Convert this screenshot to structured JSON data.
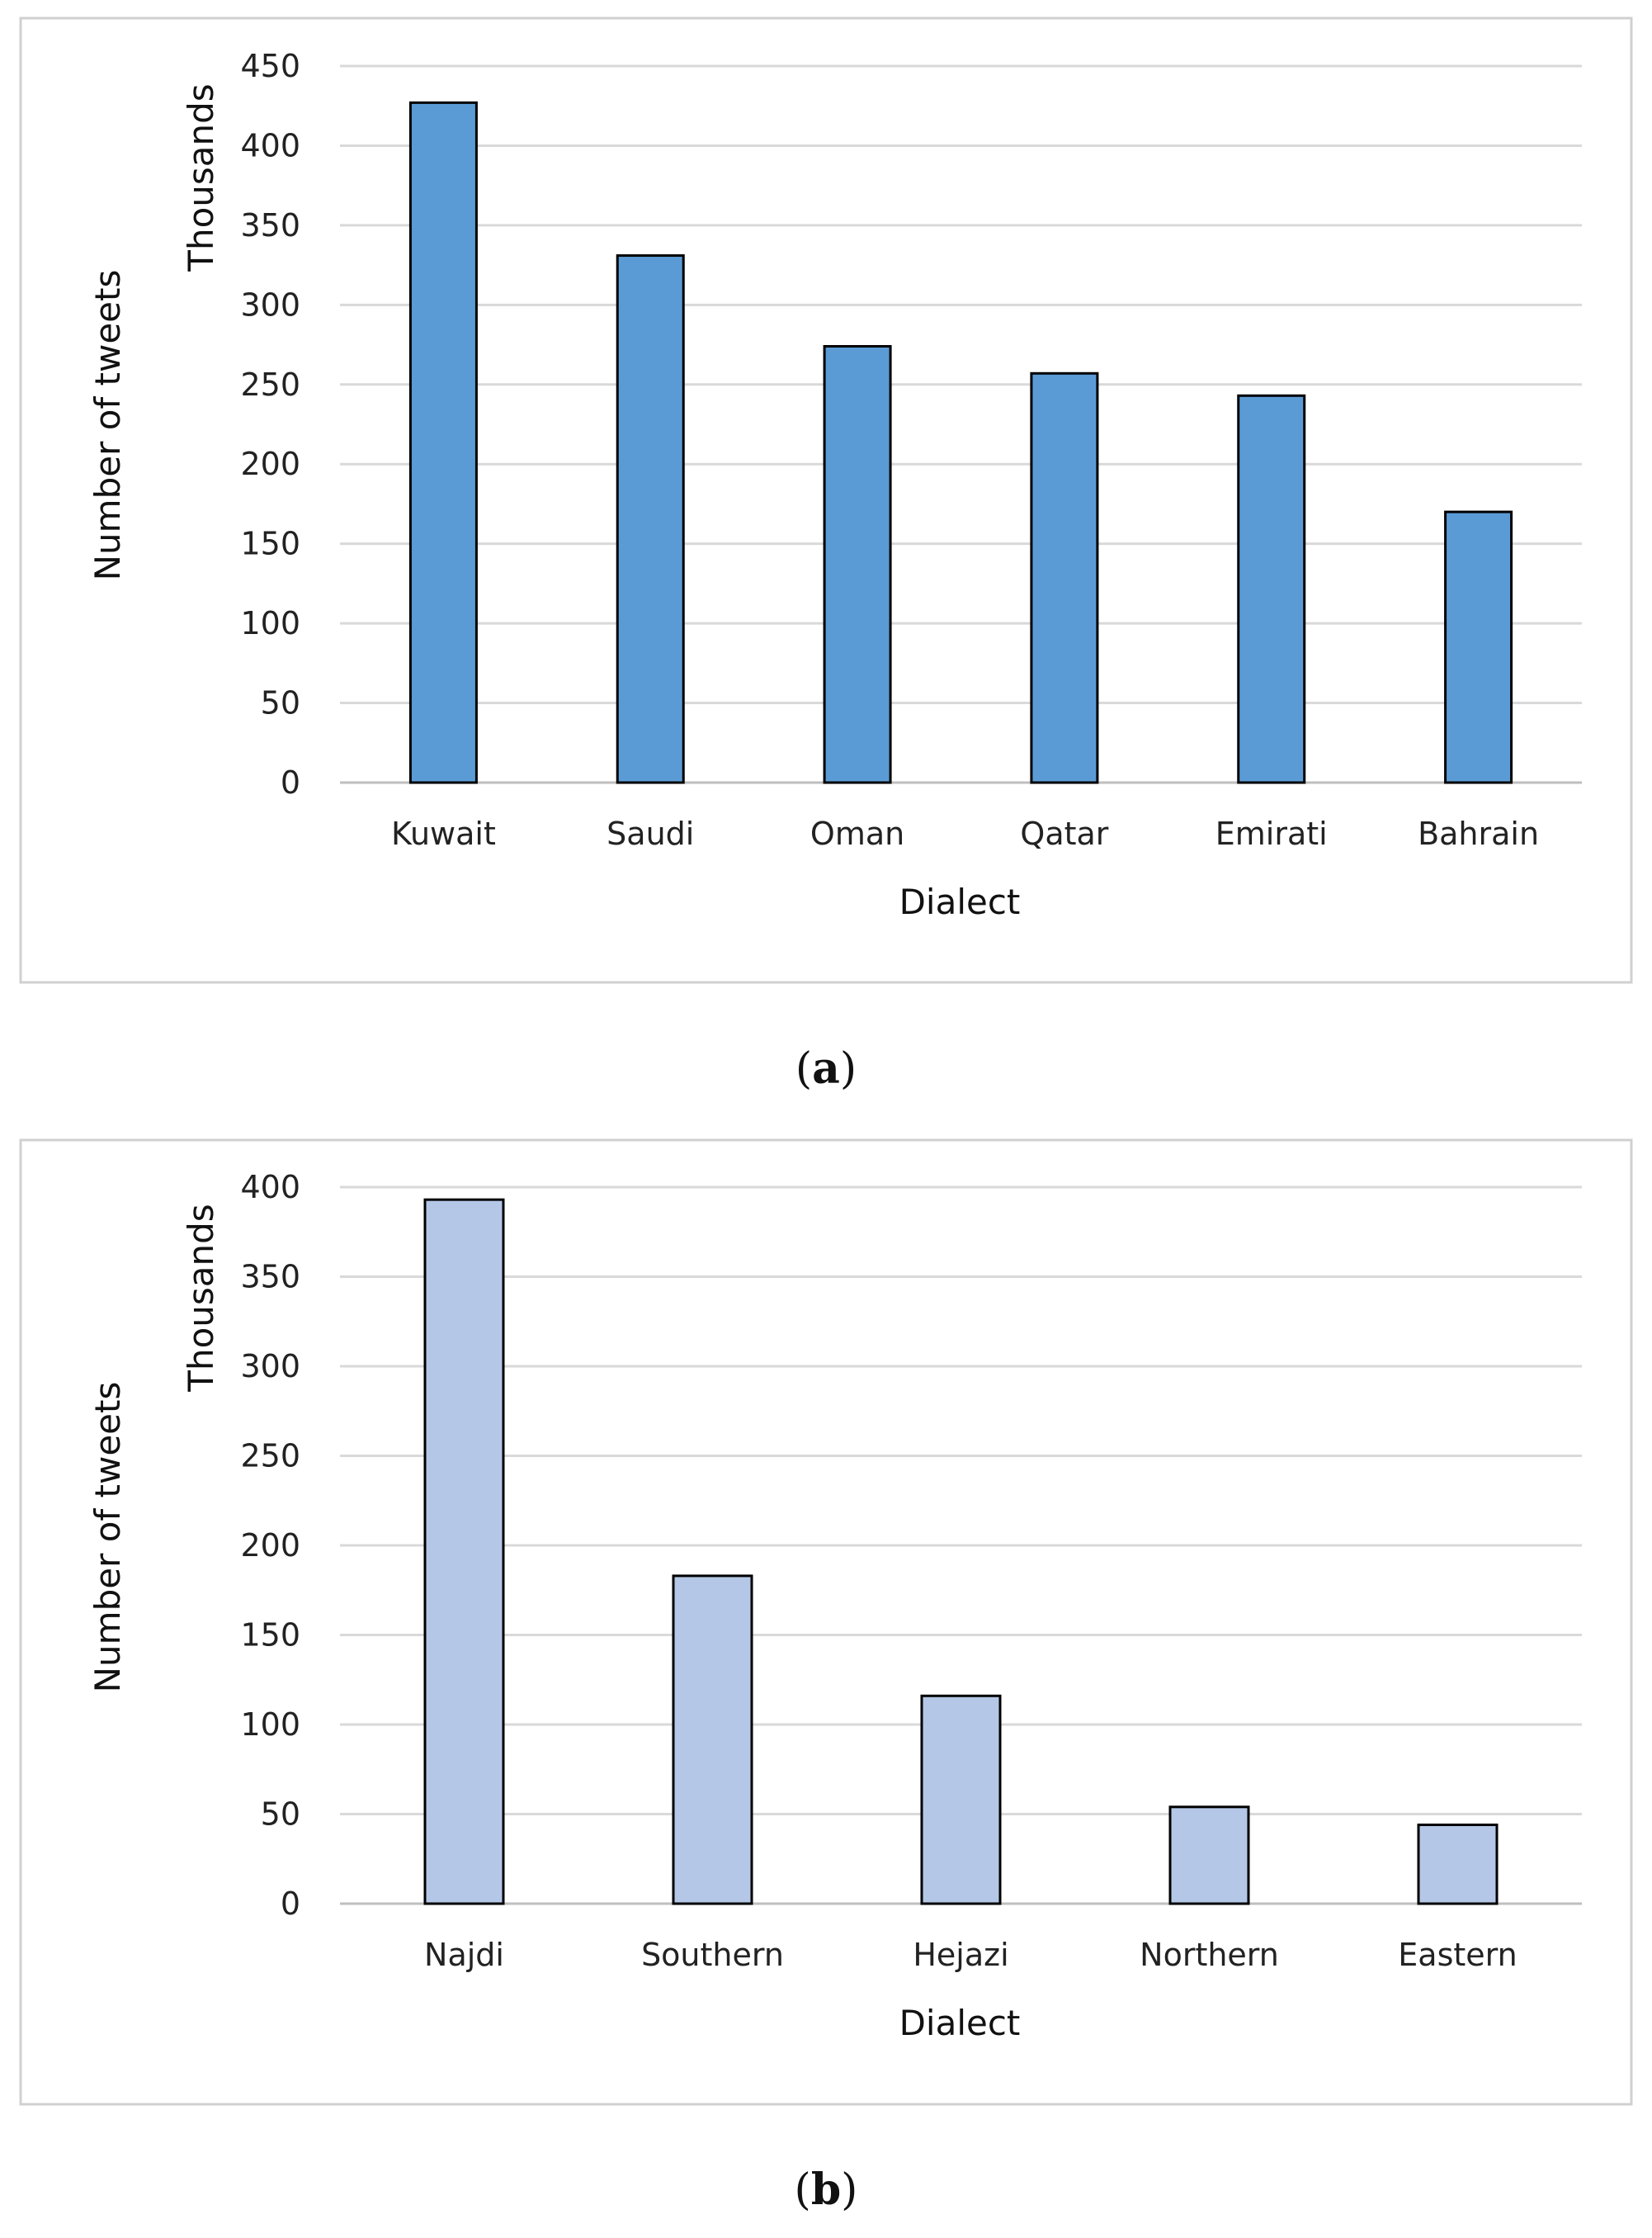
{
  "chart_data": [
    {
      "type": "bar",
      "panel_label": "a",
      "categories": [
        "Kuwait",
        "Saudi",
        "Oman",
        "Qatar",
        "Emirati",
        "Bahrain"
      ],
      "values": [
        427,
        331,
        274,
        257,
        243,
        170
      ],
      "xlabel": "Dialect",
      "ylabel": "Number of tweets",
      "yunit": "Thousands",
      "ylim": [
        0,
        450
      ],
      "yticks": [
        "0",
        "50",
        "100",
        "150",
        "200",
        "250",
        "300",
        "350",
        "400",
        "450"
      ],
      "bar_color": "#5b9bd5",
      "grid": true
    },
    {
      "type": "bar",
      "panel_label": "b",
      "categories": [
        "Najdi",
        "Southern",
        "Hejazi",
        "Northern",
        "Eastern"
      ],
      "values": [
        393,
        183,
        116,
        54,
        44
      ],
      "xlabel": "Dialect",
      "ylabel": "Number of tweets",
      "yunit": "Thousands",
      "ylim": [
        0,
        400
      ],
      "yticks": [
        "0",
        "50",
        "100",
        "150",
        "200",
        "250",
        "300",
        "350",
        "400"
      ],
      "bar_color": "#b4c7e7",
      "grid": true
    }
  ]
}
